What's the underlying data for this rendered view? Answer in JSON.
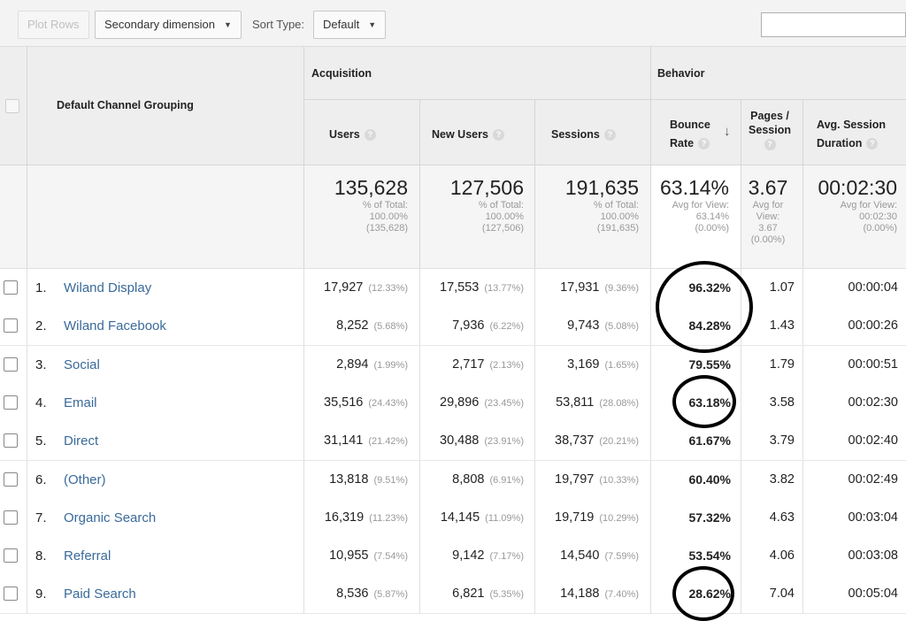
{
  "toolbar": {
    "plot_rows": "Plot Rows",
    "secondary_dimension": "Secondary dimension",
    "sort_type_label": "Sort Type:",
    "sort_type_value": "Default"
  },
  "header": {
    "dimension": "Default Channel Grouping",
    "group_acquisition": "Acquisition",
    "group_behavior": "Behavior",
    "col_users": "Users",
    "col_new_users": "New Users",
    "col_sessions": "Sessions",
    "col_bounce_line1": "Bounce",
    "col_bounce_line2": "Rate",
    "col_pages_line1": "Pages /",
    "col_pages_line2": "Session",
    "col_duration_line1": "Avg. Session",
    "col_duration_line2": "Duration",
    "help_glyph": "?",
    "sort_glyph": "↓"
  },
  "totals": {
    "users": {
      "value": "135,628",
      "note": "% of Total:\n100.00%\n(135,628)"
    },
    "new_users": {
      "value": "127,506",
      "note": "% of Total:\n100.00%\n(127,506)"
    },
    "sessions": {
      "value": "191,635",
      "note": "% of Total:\n100.00%\n(191,635)"
    },
    "bounce_rate": {
      "value": "63.14%",
      "note": "Avg for View:\n63.14%\n(0.00%)"
    },
    "pages_session": {
      "value": "3.67",
      "note": "Avg for\nView:\n3.67\n(0.00%)"
    },
    "duration": {
      "value": "00:02:30",
      "note": "Avg for View:\n00:02:30\n(0.00%)"
    }
  },
  "rows": [
    {
      "num": "1.",
      "name": "Wiland Display",
      "users": "17,927",
      "users_pct": "(12.33%)",
      "new_users": "17,553",
      "new_users_pct": "(13.77%)",
      "sessions": "17,931",
      "sessions_pct": "(9.36%)",
      "bounce": "96.32%",
      "pages": "1.07",
      "duration": "00:00:04"
    },
    {
      "num": "2.",
      "name": "Wiland Facebook",
      "users": "8,252",
      "users_pct": "(5.68%)",
      "new_users": "7,936",
      "new_users_pct": "(6.22%)",
      "sessions": "9,743",
      "sessions_pct": "(5.08%)",
      "bounce": "84.28%",
      "pages": "1.43",
      "duration": "00:00:26"
    },
    {
      "num": "3.",
      "name": "Social",
      "users": "2,894",
      "users_pct": "(1.99%)",
      "new_users": "2,717",
      "new_users_pct": "(2.13%)",
      "sessions": "3,169",
      "sessions_pct": "(1.65%)",
      "bounce": "79.55%",
      "pages": "1.79",
      "duration": "00:00:51"
    },
    {
      "num": "4.",
      "name": "Email",
      "users": "35,516",
      "users_pct": "(24.43%)",
      "new_users": "29,896",
      "new_users_pct": "(23.45%)",
      "sessions": "53,811",
      "sessions_pct": "(28.08%)",
      "bounce": "63.18%",
      "pages": "3.58",
      "duration": "00:02:30"
    },
    {
      "num": "5.",
      "name": "Direct",
      "users": "31,141",
      "users_pct": "(21.42%)",
      "new_users": "30,488",
      "new_users_pct": "(23.91%)",
      "sessions": "38,737",
      "sessions_pct": "(20.21%)",
      "bounce": "61.67%",
      "pages": "3.79",
      "duration": "00:02:40"
    },
    {
      "num": "6.",
      "name": "(Other)",
      "users": "13,818",
      "users_pct": "(9.51%)",
      "new_users": "8,808",
      "new_users_pct": "(6.91%)",
      "sessions": "19,797",
      "sessions_pct": "(10.33%)",
      "bounce": "60.40%",
      "pages": "3.82",
      "duration": "00:02:49"
    },
    {
      "num": "7.",
      "name": "Organic Search",
      "users": "16,319",
      "users_pct": "(11.23%)",
      "new_users": "14,145",
      "new_users_pct": "(11.09%)",
      "sessions": "19,719",
      "sessions_pct": "(10.29%)",
      "bounce": "57.32%",
      "pages": "4.63",
      "duration": "00:03:04"
    },
    {
      "num": "8.",
      "name": "Referral",
      "users": "10,955",
      "users_pct": "(7.54%)",
      "new_users": "9,142",
      "new_users_pct": "(7.17%)",
      "sessions": "14,540",
      "sessions_pct": "(7.59%)",
      "bounce": "53.54%",
      "pages": "4.06",
      "duration": "00:03:08"
    },
    {
      "num": "9.",
      "name": "Paid Search",
      "users": "8,536",
      "users_pct": "(5.87%)",
      "new_users": "6,821",
      "new_users_pct": "(5.35%)",
      "sessions": "14,188",
      "sessions_pct": "(7.40%)",
      "bounce": "28.62%",
      "pages": "7.04",
      "duration": "00:05:04"
    }
  ]
}
